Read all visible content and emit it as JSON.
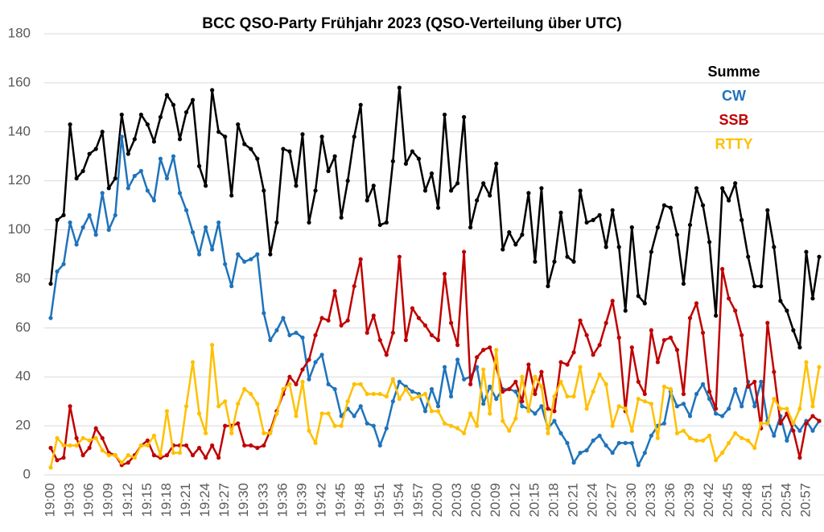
{
  "chart_data": {
    "type": "line",
    "title": "BCC QSO-Party Frühjahr 2023 (QSO-Verteilung über UTC)",
    "categories": [
      "19:00",
      null,
      null,
      "19:03",
      null,
      null,
      "19:06",
      null,
      null,
      "19:09",
      null,
      null,
      "19:12",
      null,
      null,
      "19:15",
      null,
      null,
      "19:18",
      null,
      null,
      "19:21",
      null,
      null,
      "19:24",
      null,
      null,
      "19:27",
      null,
      null,
      "19:30",
      null,
      null,
      "19:33",
      null,
      null,
      "19:36",
      null,
      null,
      "19:39",
      null,
      null,
      "19:42",
      null,
      null,
      "19:45",
      null,
      null,
      "19:48",
      null,
      null,
      "19:51",
      null,
      null,
      "19:54",
      null,
      null,
      "19:57",
      null,
      null,
      "20:00",
      null,
      null,
      "20:03",
      null,
      null,
      "20:06",
      null,
      null,
      "20:09",
      null,
      null,
      "20:12",
      null,
      null,
      "20:15",
      null,
      null,
      "20:18",
      null,
      null,
      "20:21",
      null,
      null,
      "20:24",
      null,
      null,
      "20:27",
      null,
      null,
      "20:30",
      null,
      null,
      "20:33",
      null,
      null,
      "20:36",
      null,
      null,
      "20:39",
      null,
      null,
      "20:42",
      null,
      null,
      "20:45",
      null,
      null,
      "20:48",
      null,
      null,
      "20:51",
      null,
      null,
      "20:54",
      null,
      null,
      "20:57",
      null,
      null
    ],
    "series": [
      {
        "name": "Summe",
        "color": "#000000",
        "values": [
          78,
          104,
          106,
          143,
          121,
          124,
          131,
          133,
          140,
          117,
          121,
          147,
          131,
          137,
          147,
          143,
          136,
          146,
          155,
          151,
          137,
          148,
          153,
          126,
          118,
          157,
          140,
          138,
          114,
          143,
          135,
          133,
          129,
          116,
          90,
          103,
          133,
          132,
          118,
          139,
          103,
          116,
          138,
          124,
          130,
          105,
          120,
          138,
          151,
          112,
          118,
          102,
          103,
          128,
          158,
          127,
          132,
          129,
          116,
          123,
          109,
          147,
          116,
          119,
          146,
          101,
          112,
          119,
          114,
          127,
          92,
          99,
          94,
          98,
          115,
          87,
          117,
          77,
          87,
          107,
          89,
          87,
          116,
          103,
          104,
          106,
          93,
          108,
          93,
          67,
          101,
          73,
          70,
          91,
          101,
          110,
          109,
          98,
          78,
          102,
          117,
          110,
          95,
          65,
          117,
          112,
          119,
          104,
          89,
          77,
          77,
          108,
          93,
          71,
          67,
          59,
          52,
          91,
          72,
          89
        ]
      },
      {
        "name": "CW",
        "color": "#1f73bb",
        "values": [
          64,
          83,
          86,
          103,
          94,
          101,
          106,
          98,
          115,
          100,
          106,
          138,
          117,
          122,
          124,
          116,
          112,
          129,
          121,
          130,
          115,
          108,
          99,
          90,
          101,
          92,
          103,
          86,
          77,
          90,
          87,
          88,
          90,
          66,
          55,
          59,
          64,
          57,
          58,
          56,
          39,
          46,
          49,
          37,
          35,
          24,
          27,
          24,
          28,
          21,
          20,
          12,
          19,
          30,
          38,
          36,
          34,
          33,
          26,
          35,
          28,
          44,
          32,
          47,
          39,
          40,
          44,
          29,
          36,
          31,
          35,
          35,
          34,
          28,
          27,
          25,
          28,
          19,
          22,
          17,
          13,
          5,
          9,
          10,
          14,
          16,
          12,
          9,
          13,
          13,
          13,
          4,
          9,
          16,
          20,
          21,
          34,
          28,
          29,
          24,
          33,
          37,
          31,
          25,
          24,
          27,
          35,
          28,
          38,
          28,
          38,
          22,
          16,
          24,
          14,
          21,
          18,
          22,
          18,
          22
        ]
      },
      {
        "name": "SSB",
        "color": "#c00000",
        "values": [
          11,
          6,
          7,
          28,
          15,
          8,
          11,
          19,
          15,
          9,
          8,
          4,
          5,
          8,
          12,
          14,
          8,
          7,
          8,
          12,
          12,
          12,
          8,
          11,
          7,
          12,
          7,
          20,
          20,
          21,
          12,
          12,
          11,
          12,
          18,
          26,
          33,
          40,
          37,
          43,
          47,
          57,
          64,
          63,
          75,
          61,
          63,
          77,
          88,
          58,
          65,
          55,
          49,
          58,
          89,
          55,
          68,
          64,
          61,
          57,
          55,
          82,
          62,
          53,
          91,
          37,
          48,
          51,
          52,
          44,
          34,
          35,
          38,
          30,
          45,
          33,
          42,
          27,
          26,
          46,
          45,
          50,
          63,
          57,
          49,
          53,
          62,
          71,
          56,
          26,
          52,
          38,
          33,
          59,
          46,
          55,
          56,
          51,
          33,
          64,
          70,
          58,
          34,
          27,
          84,
          72,
          67,
          57,
          36,
          38,
          19,
          62,
          42,
          21,
          25,
          18,
          7,
          21,
          24,
          22
        ]
      },
      {
        "name": "RTTY",
        "color": "#ffc000",
        "values": [
          3,
          15,
          12,
          12,
          12,
          15,
          14,
          15,
          10,
          8,
          8,
          5,
          8,
          7,
          12,
          12,
          16,
          8,
          26,
          9,
          9,
          28,
          46,
          25,
          17,
          53,
          28,
          30,
          17,
          29,
          35,
          33,
          29,
          17,
          17,
          25,
          35,
          37,
          24,
          38,
          18,
          13,
          25,
          25,
          20,
          20,
          30,
          37,
          37,
          33,
          33,
          33,
          32,
          39,
          31,
          35,
          31,
          32,
          33,
          26,
          26,
          21,
          20,
          19,
          17,
          25,
          20,
          43,
          25,
          51,
          22,
          18,
          23,
          40,
          26,
          40,
          36,
          17,
          32,
          38,
          32,
          32,
          44,
          27,
          34,
          41,
          37,
          20,
          28,
          27,
          18,
          31,
          30,
          29,
          15,
          36,
          35,
          17,
          18,
          15,
          14,
          14,
          16,
          6,
          9,
          13,
          17,
          15,
          14,
          11,
          21,
          21,
          31,
          27,
          27,
          21,
          27,
          46,
          28,
          44
        ]
      }
    ],
    "ylim": [
      0,
      180
    ],
    "yticks": [
      0,
      20,
      40,
      60,
      80,
      100,
      120,
      140,
      160,
      180
    ],
    "grid": true
  }
}
